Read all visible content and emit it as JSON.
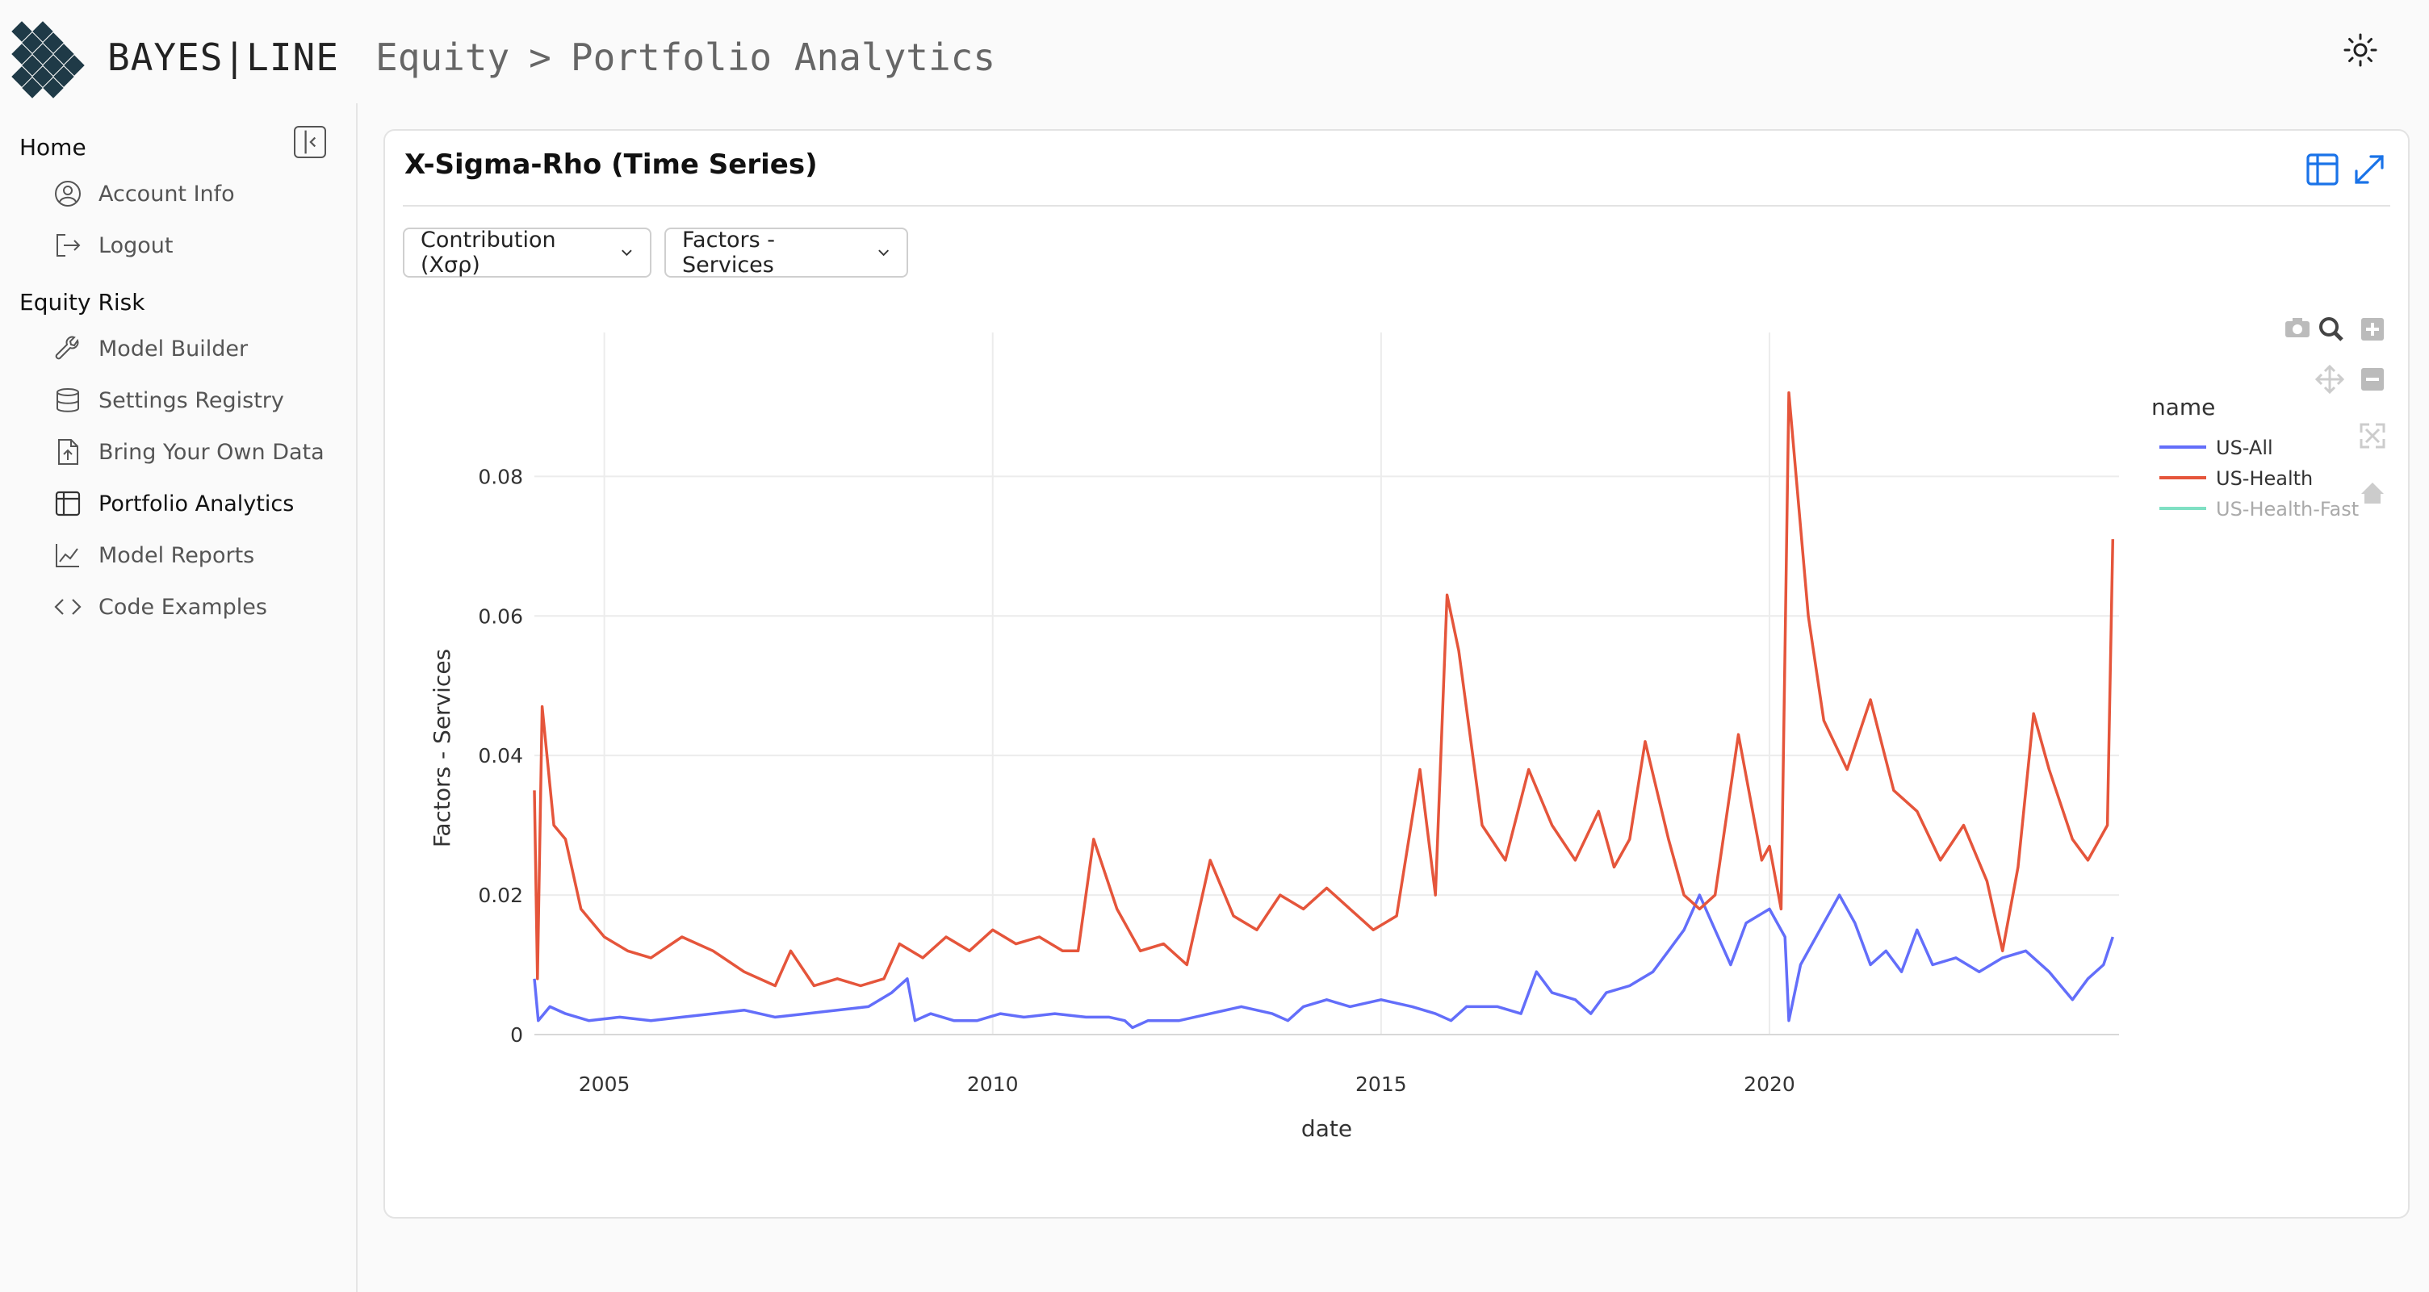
{
  "header": {
    "brand": "BAYES|LINE",
    "breadcrumb": [
      "Equity",
      "Portfolio Analytics"
    ],
    "breadcrumb_separator": ">"
  },
  "sidebar": {
    "sections": [
      {
        "title": "Home",
        "items": [
          {
            "label": "Account Info",
            "icon": "user-circle-icon"
          },
          {
            "label": "Logout",
            "icon": "logout-icon"
          }
        ]
      },
      {
        "title": "Equity Risk",
        "items": [
          {
            "label": "Model Builder",
            "icon": "wrench-icon"
          },
          {
            "label": "Settings Registry",
            "icon": "database-icon"
          },
          {
            "label": "Bring Your Own Data",
            "icon": "file-upload-icon"
          },
          {
            "label": "Portfolio Analytics",
            "icon": "table-icon",
            "active": true
          },
          {
            "label": "Model Reports",
            "icon": "line-chart-icon"
          },
          {
            "label": "Code Examples",
            "icon": "code-icon"
          }
        ]
      }
    ]
  },
  "card": {
    "title": "X-Sigma-Rho (Time Series)",
    "dropdowns": [
      "Contribution (Xσρ)",
      "Factors - Services"
    ]
  },
  "colors": {
    "accent": "#1a73e8",
    "us_all": "#636efa",
    "us_health": "#e5553b",
    "us_health_fast": "#7fe0c3"
  },
  "chart_data": {
    "type": "line",
    "xlabel": "date",
    "ylabel": "Factors - Services",
    "x_ticks": [
      "2005",
      "2010",
      "2015",
      "2020"
    ],
    "y_ticks": [
      "0",
      "0.02",
      "0.04",
      "0.06",
      "0.08"
    ],
    "xlim": [
      2004.1,
      2024.5
    ],
    "ylim": [
      0,
      0.096
    ],
    "legend_title": "name",
    "legend_position": "top-right",
    "grid": true,
    "series": [
      {
        "name": "US-All",
        "color": "#636efa",
        "points": [
          [
            2004.1,
            0.008
          ],
          [
            2004.15,
            0.002
          ],
          [
            2004.3,
            0.004
          ],
          [
            2004.5,
            0.003
          ],
          [
            2004.8,
            0.002
          ],
          [
            2005.2,
            0.0025
          ],
          [
            2005.6,
            0.002
          ],
          [
            2006.0,
            0.0025
          ],
          [
            2006.4,
            0.003
          ],
          [
            2006.8,
            0.0035
          ],
          [
            2007.2,
            0.0025
          ],
          [
            2007.6,
            0.003
          ],
          [
            2008.0,
            0.0035
          ],
          [
            2008.4,
            0.004
          ],
          [
            2008.7,
            0.006
          ],
          [
            2008.9,
            0.008
          ],
          [
            2009.0,
            0.002
          ],
          [
            2009.2,
            0.003
          ],
          [
            2009.5,
            0.002
          ],
          [
            2009.8,
            0.002
          ],
          [
            2010.1,
            0.003
          ],
          [
            2010.4,
            0.0025
          ],
          [
            2010.8,
            0.003
          ],
          [
            2011.2,
            0.0025
          ],
          [
            2011.5,
            0.0025
          ],
          [
            2011.7,
            0.002
          ],
          [
            2011.8,
            0.001
          ],
          [
            2012.0,
            0.002
          ],
          [
            2012.4,
            0.002
          ],
          [
            2012.8,
            0.003
          ],
          [
            2013.2,
            0.004
          ],
          [
            2013.6,
            0.003
          ],
          [
            2013.8,
            0.002
          ],
          [
            2014.0,
            0.004
          ],
          [
            2014.3,
            0.005
          ],
          [
            2014.6,
            0.004
          ],
          [
            2015.0,
            0.005
          ],
          [
            2015.4,
            0.004
          ],
          [
            2015.7,
            0.003
          ],
          [
            2015.9,
            0.002
          ],
          [
            2016.1,
            0.004
          ],
          [
            2016.5,
            0.004
          ],
          [
            2016.8,
            0.003
          ],
          [
            2017.0,
            0.009
          ],
          [
            2017.2,
            0.006
          ],
          [
            2017.5,
            0.005
          ],
          [
            2017.7,
            0.003
          ],
          [
            2017.9,
            0.006
          ],
          [
            2018.2,
            0.007
          ],
          [
            2018.5,
            0.009
          ],
          [
            2018.7,
            0.012
          ],
          [
            2018.9,
            0.015
          ],
          [
            2019.1,
            0.02
          ],
          [
            2019.3,
            0.015
          ],
          [
            2019.5,
            0.01
          ],
          [
            2019.7,
            0.016
          ],
          [
            2020.0,
            0.018
          ],
          [
            2020.2,
            0.014
          ],
          [
            2020.25,
            0.002
          ],
          [
            2020.4,
            0.01
          ],
          [
            2020.7,
            0.016
          ],
          [
            2020.9,
            0.02
          ],
          [
            2021.1,
            0.016
          ],
          [
            2021.3,
            0.01
          ],
          [
            2021.5,
            0.012
          ],
          [
            2021.7,
            0.009
          ],
          [
            2021.9,
            0.015
          ],
          [
            2022.1,
            0.01
          ],
          [
            2022.4,
            0.011
          ],
          [
            2022.7,
            0.009
          ],
          [
            2023.0,
            0.011
          ],
          [
            2023.3,
            0.012
          ],
          [
            2023.6,
            0.009
          ],
          [
            2023.9,
            0.005
          ],
          [
            2024.1,
            0.008
          ],
          [
            2024.3,
            0.01
          ],
          [
            2024.42,
            0.014
          ]
        ]
      },
      {
        "name": "US-Health",
        "color": "#e5553b",
        "points": [
          [
            2004.1,
            0.035
          ],
          [
            2004.14,
            0.008
          ],
          [
            2004.2,
            0.047
          ],
          [
            2004.35,
            0.03
          ],
          [
            2004.5,
            0.028
          ],
          [
            2004.7,
            0.018
          ],
          [
            2005.0,
            0.014
          ],
          [
            2005.3,
            0.012
          ],
          [
            2005.6,
            0.011
          ],
          [
            2006.0,
            0.014
          ],
          [
            2006.4,
            0.012
          ],
          [
            2006.8,
            0.009
          ],
          [
            2007.2,
            0.007
          ],
          [
            2007.4,
            0.012
          ],
          [
            2007.7,
            0.007
          ],
          [
            2008.0,
            0.008
          ],
          [
            2008.3,
            0.007
          ],
          [
            2008.6,
            0.008
          ],
          [
            2008.8,
            0.013
          ],
          [
            2009.1,
            0.011
          ],
          [
            2009.4,
            0.014
          ],
          [
            2009.7,
            0.012
          ],
          [
            2010.0,
            0.015
          ],
          [
            2010.3,
            0.013
          ],
          [
            2010.6,
            0.014
          ],
          [
            2010.9,
            0.012
          ],
          [
            2011.1,
            0.012
          ],
          [
            2011.3,
            0.028
          ],
          [
            2011.6,
            0.018
          ],
          [
            2011.9,
            0.012
          ],
          [
            2012.2,
            0.013
          ],
          [
            2012.5,
            0.01
          ],
          [
            2012.8,
            0.025
          ],
          [
            2013.1,
            0.017
          ],
          [
            2013.4,
            0.015
          ],
          [
            2013.7,
            0.02
          ],
          [
            2014.0,
            0.018
          ],
          [
            2014.3,
            0.021
          ],
          [
            2014.6,
            0.018
          ],
          [
            2014.9,
            0.015
          ],
          [
            2015.2,
            0.017
          ],
          [
            2015.5,
            0.038
          ],
          [
            2015.7,
            0.02
          ],
          [
            2015.85,
            0.063
          ],
          [
            2016.0,
            0.055
          ],
          [
            2016.3,
            0.03
          ],
          [
            2016.6,
            0.025
          ],
          [
            2016.9,
            0.038
          ],
          [
            2017.2,
            0.03
          ],
          [
            2017.5,
            0.025
          ],
          [
            2017.8,
            0.032
          ],
          [
            2018.0,
            0.024
          ],
          [
            2018.2,
            0.028
          ],
          [
            2018.4,
            0.042
          ],
          [
            2018.7,
            0.028
          ],
          [
            2018.9,
            0.02
          ],
          [
            2019.1,
            0.018
          ],
          [
            2019.3,
            0.02
          ],
          [
            2019.6,
            0.043
          ],
          [
            2019.9,
            0.025
          ],
          [
            2020.0,
            0.027
          ],
          [
            2020.15,
            0.018
          ],
          [
            2020.25,
            0.092
          ],
          [
            2020.5,
            0.06
          ],
          [
            2020.7,
            0.045
          ],
          [
            2021.0,
            0.038
          ],
          [
            2021.3,
            0.048
          ],
          [
            2021.6,
            0.035
          ],
          [
            2021.9,
            0.032
          ],
          [
            2022.2,
            0.025
          ],
          [
            2022.5,
            0.03
          ],
          [
            2022.8,
            0.022
          ],
          [
            2023.0,
            0.012
          ],
          [
            2023.2,
            0.024
          ],
          [
            2023.4,
            0.046
          ],
          [
            2023.6,
            0.038
          ],
          [
            2023.9,
            0.028
          ],
          [
            2024.1,
            0.025
          ],
          [
            2024.35,
            0.03
          ],
          [
            2024.42,
            0.071
          ]
        ]
      },
      {
        "name": "US-Health-Fast",
        "color": "#7fe0c3",
        "points": []
      }
    ]
  },
  "modebar": [
    "camera-icon",
    "zoom-icon",
    "zoom-in-icon",
    "pan-icon",
    "zoom-out-icon",
    "autoscale-icon",
    "reset-axes-icon"
  ]
}
